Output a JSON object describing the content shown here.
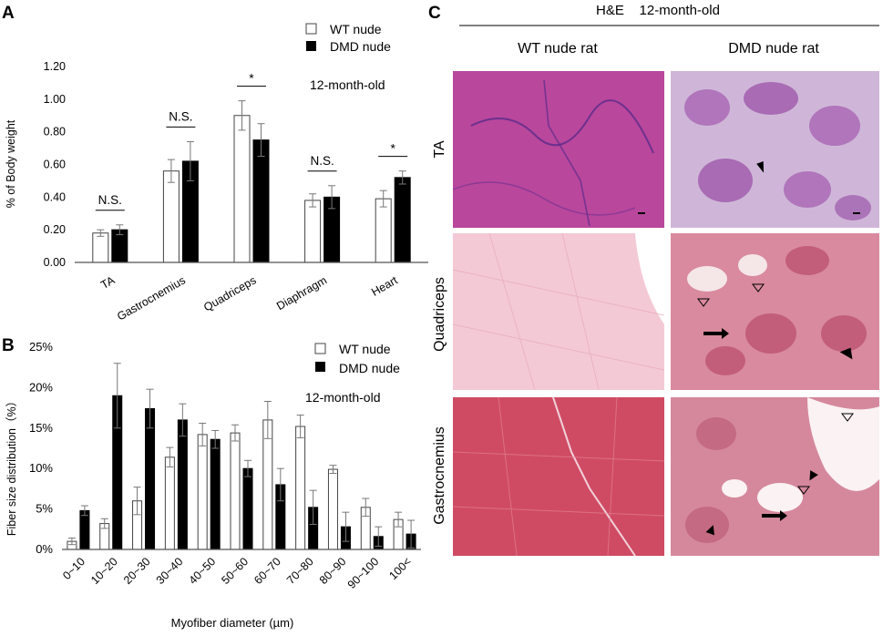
{
  "panels": {
    "A": {
      "letter": "A"
    },
    "B": {
      "letter": "B"
    },
    "C": {
      "letter": "C",
      "header": "H&E    12-month-old",
      "column_labels": [
        "WT nude rat",
        "DMD nude rat"
      ],
      "row_labels": [
        "TA",
        "Quadriceps",
        "Gastrocnemius"
      ]
    }
  },
  "chart_data": [
    {
      "type": "bar",
      "title": "",
      "annotation": "12-month-old",
      "ylabel": "% of Body weight",
      "xlabel": "",
      "ylim": [
        0,
        1.2
      ],
      "yticks": [
        0,
        0.2,
        0.4,
        0.6,
        0.8,
        1.0,
        1.2
      ],
      "ytick_labels": [
        "0.00",
        "0.20",
        "0.40",
        "0.60",
        "0.80",
        "1.00",
        "1.20"
      ],
      "categories": [
        "TA",
        "Gastrocnemius",
        "Quadriceps",
        "Diaphragm",
        "Heart"
      ],
      "series": [
        {
          "name": "WT nude",
          "color": "#ffffff",
          "values": [
            0.18,
            0.56,
            0.9,
            0.38,
            0.39
          ],
          "errors": [
            0.02,
            0.07,
            0.09,
            0.04,
            0.05
          ]
        },
        {
          "name": "DMD nude",
          "color": "#000000",
          "values": [
            0.2,
            0.62,
            0.75,
            0.4,
            0.52
          ],
          "errors": [
            0.03,
            0.12,
            0.1,
            0.07,
            0.04
          ]
        }
      ],
      "significance": [
        "N.S.",
        "N.S.",
        "*",
        "N.S.",
        "*"
      ],
      "legend": "top-right"
    },
    {
      "type": "bar",
      "title": "",
      "annotation": "12-month-old",
      "ylabel": "Fiber size distribution（%）",
      "xlabel": "Myofiber diameter (µm)",
      "ylim": [
        0,
        25
      ],
      "yticks": [
        0,
        5,
        10,
        15,
        20,
        25
      ],
      "ytick_labels": [
        "0%",
        "5%",
        "10%",
        "15%",
        "20%",
        "25%"
      ],
      "categories": [
        "0~10",
        "10~20",
        "20~30",
        "30~40",
        "40~50",
        "50~60",
        "60~70",
        "70~80",
        "80~90",
        "90~100",
        "100<"
      ],
      "series": [
        {
          "name": "WT nude",
          "color": "#ffffff",
          "values": [
            1.0,
            3.2,
            6.0,
            11.4,
            14.2,
            14.4,
            16.0,
            15.2,
            9.9,
            5.2,
            3.7
          ],
          "errors": [
            0.4,
            0.6,
            1.7,
            1.2,
            1.4,
            1.0,
            2.3,
            1.4,
            0.5,
            1.1,
            0.9
          ]
        },
        {
          "name": "DMD nude",
          "color": "#000000",
          "values": [
            4.8,
            19.0,
            17.4,
            16.0,
            13.6,
            10.0,
            8.0,
            5.2,
            2.8,
            1.6,
            1.9
          ],
          "errors": [
            0.6,
            4.0,
            2.4,
            2.0,
            1.1,
            1.0,
            2.0,
            2.1,
            1.8,
            1.2,
            1.7
          ]
        }
      ],
      "legend": "top-right"
    }
  ]
}
